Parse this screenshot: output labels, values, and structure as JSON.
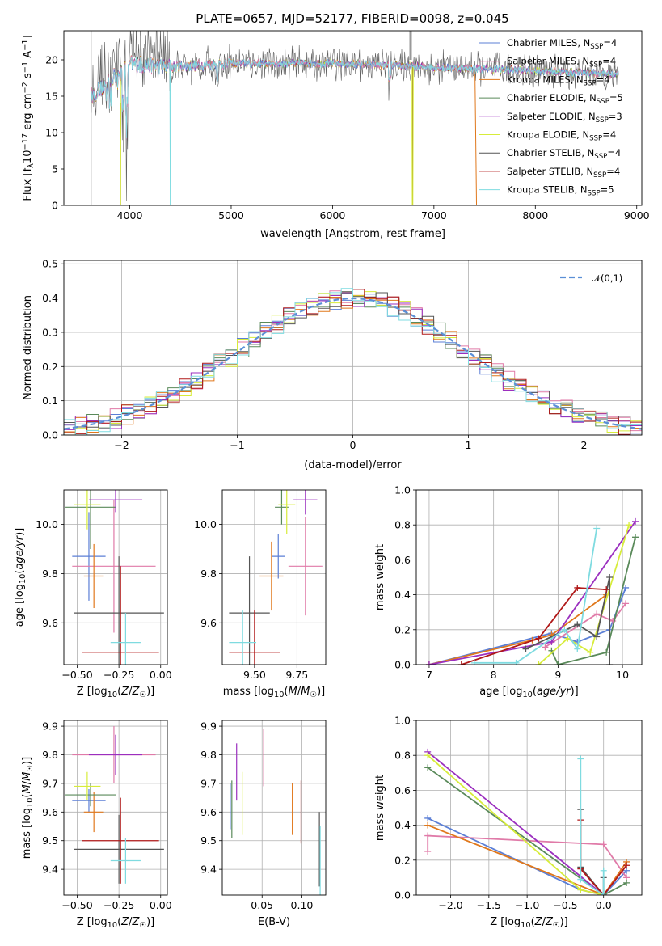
{
  "figure_title": "PLATE=0657, MJD=52177, FIBERID=0098, z=0.045",
  "palette": {
    "Chabrier MILES": "#5b7fd6",
    "Salpeter MILES": "#e07aa8",
    "Kroupa MILES": "#e0781c",
    "Chabrier ELODIE": "#5a8a5a",
    "Salpeter ELODIE": "#9b2fbf",
    "Kroupa ELODIE": "#d7ec3a",
    "Chabrier STELIB": "#555555",
    "Salpeter STELIB": "#b01818",
    "Kroupa STELIB": "#7fdbe0"
  },
  "chart_data": [
    {
      "id": "spectrum",
      "type": "line",
      "xlabel": "wavelength [Angstrom, rest frame]",
      "ylabel": "Flux [f_λ 10^-17 erg cm^-2 s^-1 A^-1]",
      "xlim": [
        3350,
        9050
      ],
      "ylim": [
        0,
        24
      ],
      "xticks": [
        4000,
        5000,
        6000,
        7000,
        8000,
        9000
      ],
      "yticks": [
        0,
        5,
        10,
        15,
        20
      ],
      "legend_position": "right",
      "legend": [
        {
          "name": "Chabrier MILES",
          "nssp": "4"
        },
        {
          "name": "Salpeter MILES",
          "nssp": "4"
        },
        {
          "name": "Kroupa MILES",
          "nssp": "4"
        },
        {
          "name": "Chabrier ELODIE",
          "nssp": "5"
        },
        {
          "name": "Salpeter ELODIE",
          "nssp": "3"
        },
        {
          "name": "Kroupa ELODIE",
          "nssp": "4"
        },
        {
          "name": "Chabrier STELIB",
          "nssp": "4"
        },
        {
          "name": "Salpeter STELIB",
          "nssp": "4"
        },
        {
          "name": "Kroupa STELIB",
          "nssp": "5"
        }
      ],
      "continuum_points": [
        [
          3620,
          15
        ],
        [
          3800,
          17
        ],
        [
          4000,
          19.5
        ],
        [
          4400,
          19
        ],
        [
          5000,
          19.5
        ],
        [
          6000,
          19.5
        ],
        [
          7000,
          19
        ],
        [
          8000,
          18.5
        ],
        [
          8800,
          18
        ]
      ],
      "wavelength_range": [
        3620,
        8820
      ],
      "cutoffs": [
        {
          "series": "Kroupa ELODIE",
          "wavelength": 3910
        },
        {
          "series": "Kroupa STELIB",
          "wavelength": 4400
        },
        {
          "series": "Kroupa ELODIE",
          "wavelength": 6790
        },
        {
          "series": "Kroupa MILES",
          "wavelength": 7410
        }
      ]
    },
    {
      "id": "residuals",
      "type": "histogram",
      "xlabel": "(data-model)/error",
      "ylabel": "Normed distribution",
      "xlim": [
        -2.5,
        2.5
      ],
      "ylim": [
        0,
        0.51
      ],
      "xticks": [
        -2,
        -1,
        0,
        1,
        2
      ],
      "yticks": [
        0.0,
        0.1,
        0.2,
        0.3,
        0.4,
        0.5
      ],
      "legend": "𝒩(0,1)",
      "legend_position": "top-right",
      "bin_width": 0.1,
      "reference_curve": {
        "name": "𝒩(0,1)",
        "mean": 0,
        "sd": 1,
        "color": "#5b8fd6"
      }
    },
    {
      "id": "age-vs-Z",
      "type": "errorbar",
      "xlabel": "Z [log10(Z/Z☉)]",
      "ylabel": "age [log10(age/yr)]",
      "xlim": [
        -0.58,
        0.04
      ],
      "ylim": [
        9.43,
        10.14
      ],
      "xticks": [
        -0.5,
        -0.25,
        0.0
      ],
      "yticks": [
        9.6,
        9.8,
        10.0
      ],
      "points": [
        {
          "series": "Chabrier MILES",
          "x": -0.43,
          "xerr": 0.1,
          "y": 9.87,
          "yerr": 0.18
        },
        {
          "series": "Salpeter MILES",
          "x": -0.28,
          "xerr": 0.25,
          "y": 9.83,
          "yerr": 0.27
        },
        {
          "series": "Kroupa MILES",
          "x": -0.4,
          "xerr": 0.06,
          "y": 9.79,
          "yerr": 0.13
        },
        {
          "series": "Chabrier ELODIE",
          "x": -0.42,
          "xerr": 0.15,
          "y": 10.07,
          "yerr": 0.17
        },
        {
          "series": "Salpeter ELODIE",
          "x": -0.27,
          "xerr": 0.16,
          "y": 10.1,
          "yerr": 0.05
        },
        {
          "series": "Kroupa ELODIE",
          "x": -0.44,
          "xerr": 0.08,
          "y": 10.08,
          "yerr": 0.1
        },
        {
          "series": "Chabrier STELIB",
          "x": -0.25,
          "xerr": 0.27,
          "y": 9.64,
          "yerr": 0.23
        },
        {
          "series": "Salpeter STELIB",
          "x": -0.24,
          "xerr": 0.23,
          "y": 9.48,
          "yerr": 0.35
        },
        {
          "series": "Kroupa STELIB",
          "x": -0.21,
          "xerr": 0.09,
          "y": 9.52,
          "yerr": 0.12
        }
      ]
    },
    {
      "id": "age-vs-mass",
      "type": "errorbar",
      "xlabel": "mass [log10(M/M☉)]",
      "ylabel": "",
      "xlim": [
        9.31,
        9.92
      ],
      "ylim": [
        9.43,
        10.14
      ],
      "xticks": [
        9.5,
        9.75
      ],
      "yticks": [
        9.6,
        9.8,
        10.0
      ],
      "points": [
        {
          "series": "Chabrier MILES",
          "x": 9.64,
          "xerr": 0.04,
          "y": 9.87,
          "yerr": 0.09
        },
        {
          "series": "Salpeter MILES",
          "x": 9.8,
          "xerr": 0.1,
          "y": 9.83,
          "yerr": 0.2
        },
        {
          "series": "Kroupa MILES",
          "x": 9.6,
          "xerr": 0.07,
          "y": 9.79,
          "yerr": 0.14
        },
        {
          "series": "Chabrier ELODIE",
          "x": 9.66,
          "xerr": 0.04,
          "y": 10.07,
          "yerr": 0.07
        },
        {
          "series": "Salpeter ELODIE",
          "x": 9.8,
          "xerr": 0.07,
          "y": 10.1,
          "yerr": 0.06
        },
        {
          "series": "Kroupa ELODIE",
          "x": 9.69,
          "xerr": 0.05,
          "y": 10.08,
          "yerr": 0.12
        },
        {
          "series": "Chabrier STELIB",
          "x": 9.47,
          "xerr": 0.12,
          "y": 9.64,
          "yerr": 0.23
        },
        {
          "series": "Salpeter STELIB",
          "x": 9.5,
          "xerr": 0.15,
          "y": 9.48,
          "yerr": 0.17
        },
        {
          "series": "Kroupa STELIB",
          "x": 9.43,
          "xerr": 0.08,
          "y": 9.52,
          "yerr": 0.13
        }
      ]
    },
    {
      "id": "mass-weight-vs-age",
      "type": "line",
      "xlabel": "age [log10(age/yr)]",
      "ylabel": "mass weight",
      "xlim": [
        6.8,
        10.3
      ],
      "ylim": [
        0,
        1.0
      ],
      "xticks": [
        7,
        8,
        9,
        10
      ],
      "yticks": [
        0.0,
        0.2,
        0.4,
        0.6,
        0.8,
        1.0
      ],
      "series": [
        {
          "name": "Chabrier MILES",
          "points": [
            [
              7.0,
              0.0
            ],
            [
              8.9,
              0.18
            ],
            [
              9.3,
              0.13
            ],
            [
              9.8,
              0.2
            ],
            [
              10.05,
              0.44
            ]
          ]
        },
        {
          "name": "Salpeter MILES",
          "points": [
            [
              8.8,
              0.1
            ],
            [
              9.6,
              0.29
            ],
            [
              9.85,
              0.25
            ],
            [
              10.05,
              0.35
            ]
          ]
        },
        {
          "name": "Kroupa MILES",
          "points": [
            [
              7.0,
              0.0
            ],
            [
              8.6,
              0.14
            ],
            [
              8.9,
              0.17
            ],
            [
              9.75,
              0.4
            ]
          ]
        },
        {
          "name": "Chabrier ELODIE",
          "points": [
            [
              8.9,
              0.08
            ],
            [
              9.0,
              0.0
            ],
            [
              9.75,
              0.07
            ],
            [
              10.2,
              0.73
            ]
          ]
        },
        {
          "name": "Salpeter ELODIE",
          "points": [
            [
              7.0,
              0.0
            ],
            [
              8.9,
              0.13
            ],
            [
              10.2,
              0.82
            ]
          ]
        },
        {
          "name": "Kroupa ELODIE",
          "points": [
            [
              8.7,
              0.0
            ],
            [
              9.15,
              0.15
            ],
            [
              9.5,
              0.07
            ],
            [
              10.1,
              0.8
            ]
          ]
        },
        {
          "name": "Chabrier STELIB",
          "points": [
            [
              8.5,
              0.09
            ],
            [
              9.3,
              0.23
            ],
            [
              9.6,
              0.16
            ],
            [
              9.8,
              0.5
            ],
            [
              9.8,
              0.0
            ]
          ]
        },
        {
          "name": "Salpeter STELIB",
          "points": [
            [
              7.5,
              0.0
            ],
            [
              8.7,
              0.15
            ],
            [
              9.3,
              0.44
            ],
            [
              9.75,
              0.43
            ]
          ]
        },
        {
          "name": "Kroupa STELIB",
          "points": [
            [
              7.7,
              0.01
            ],
            [
              8.35,
              0.01
            ],
            [
              9.1,
              0.2
            ],
            [
              9.3,
              0.09
            ],
            [
              9.6,
              0.78
            ]
          ]
        }
      ]
    },
    {
      "id": "mass-vs-Z",
      "type": "errorbar",
      "xlabel": "Z [log10(Z/Z☉)]",
      "ylabel": "mass [log10(M/M☉)]",
      "xlim": [
        -0.58,
        0.04
      ],
      "ylim": [
        9.31,
        9.92
      ],
      "xticks": [
        -0.5,
        -0.25,
        0.0
      ],
      "yticks": [
        9.4,
        9.5,
        9.6,
        9.7,
        9.8,
        9.9
      ],
      "points": [
        {
          "series": "Chabrier MILES",
          "x": -0.43,
          "xerr": 0.1,
          "y": 9.64,
          "yerr": 0.04
        },
        {
          "series": "Salpeter MILES",
          "x": -0.28,
          "xerr": 0.25,
          "y": 9.8,
          "yerr": 0.1
        },
        {
          "series": "Kroupa MILES",
          "x": -0.4,
          "xerr": 0.06,
          "y": 9.6,
          "yerr": 0.07
        },
        {
          "series": "Chabrier ELODIE",
          "x": -0.42,
          "xerr": 0.15,
          "y": 9.66,
          "yerr": 0.04
        },
        {
          "series": "Salpeter ELODIE",
          "x": -0.27,
          "xerr": 0.16,
          "y": 9.8,
          "yerr": 0.07
        },
        {
          "series": "Kroupa ELODIE",
          "x": -0.44,
          "xerr": 0.08,
          "y": 9.69,
          "yerr": 0.05
        },
        {
          "series": "Chabrier STELIB",
          "x": -0.25,
          "xerr": 0.27,
          "y": 9.47,
          "yerr": 0.12
        },
        {
          "series": "Salpeter STELIB",
          "x": -0.24,
          "xerr": 0.23,
          "y": 9.5,
          "yerr": 0.15
        },
        {
          "series": "Kroupa STELIB",
          "x": -0.21,
          "xerr": 0.09,
          "y": 9.43,
          "yerr": 0.08
        }
      ]
    },
    {
      "id": "mass-vs-EBV",
      "type": "errorbar",
      "xlabel": "E(B-V)",
      "ylabel": "",
      "xlim": [
        0.0,
        0.13
      ],
      "ylim": [
        9.31,
        9.92
      ],
      "xticks": [
        0.05,
        0.1
      ],
      "yticks": [
        9.4,
        9.5,
        9.6,
        9.7,
        9.8,
        9.9
      ],
      "points": [
        {
          "series": "Chabrier MILES",
          "x": 0.01,
          "y": 9.62,
          "yerr": 0.08
        },
        {
          "series": "Salpeter MILES",
          "x": 0.052,
          "y": 9.79,
          "yerr": 0.1
        },
        {
          "series": "Kroupa MILES",
          "x": 0.088,
          "y": 9.61,
          "yerr": 0.09
        },
        {
          "series": "Chabrier ELODIE",
          "x": 0.012,
          "y": 9.61,
          "yerr": 0.1
        },
        {
          "series": "Salpeter ELODIE",
          "x": 0.018,
          "y": 9.74,
          "yerr": 0.1
        },
        {
          "series": "Kroupa ELODIE",
          "x": 0.025,
          "y": 9.63,
          "yerr": 0.11
        },
        {
          "series": "Chabrier STELIB",
          "x": 0.122,
          "y": 9.47,
          "yerr": 0.13
        },
        {
          "series": "Salpeter STELIB",
          "x": 0.099,
          "y": 9.6,
          "yerr": 0.11
        },
        {
          "series": "Kroupa STELIB",
          "x": 0.123,
          "y": 9.43,
          "yerr": 0.12
        }
      ]
    },
    {
      "id": "mass-weight-vs-Z",
      "type": "line",
      "xlabel": "Z [log10(Z/Z☉)]",
      "ylabel": "mass weight",
      "xlim": [
        -2.45,
        0.5
      ],
      "ylim": [
        0,
        1.0
      ],
      "xticks": [
        -2.0,
        -1.5,
        -1.0,
        -0.5,
        0.0
      ],
      "yticks": [
        0.0,
        0.2,
        0.4,
        0.6,
        0.8,
        1.0
      ],
      "series": [
        {
          "name": "Chabrier MILES",
          "points": [
            [
              -2.3,
              0.44
            ],
            [
              -0.3,
              0.03
            ],
            [
              0.0,
              0.0
            ],
            [
              0.3,
              0.14
            ]
          ]
        },
        {
          "name": "Salpeter MILES",
          "points": [
            [
              -2.3,
              0.25
            ],
            [
              -2.3,
              0.34
            ],
            [
              0.0,
              0.29
            ],
            [
              0.3,
              0.1
            ]
          ]
        },
        {
          "name": "Kroupa MILES",
          "points": [
            [
              -2.3,
              0.4
            ],
            [
              0.0,
              0.0
            ],
            [
              0.3,
              0.19
            ]
          ]
        },
        {
          "name": "Chabrier ELODIE",
          "points": [
            [
              -2.3,
              0.73
            ],
            [
              0.0,
              0.0
            ],
            [
              0.3,
              0.07
            ]
          ]
        },
        {
          "name": "Salpeter ELODIE",
          "points": [
            [
              -2.3,
              0.82
            ],
            [
              0.0,
              0.0
            ]
          ]
        },
        {
          "name": "Kroupa ELODIE",
          "points": [
            [
              -2.3,
              0.8
            ],
            [
              -0.3,
              0.03
            ],
            [
              0.0,
              0.0
            ]
          ]
        },
        {
          "name": "Chabrier STELIB",
          "points": [
            [
              -0.3,
              0.49
            ],
            [
              -0.3,
              0.16
            ],
            [
              0.0,
              0.0
            ],
            [
              0.0,
              0.1
            ]
          ]
        },
        {
          "name": "Salpeter STELIB",
          "points": [
            [
              -0.3,
              0.43
            ],
            [
              -0.3,
              0.15
            ],
            [
              0.0,
              0.0
            ],
            [
              0.3,
              0.17
            ]
          ]
        },
        {
          "name": "Kroupa STELIB",
          "points": [
            [
              -0.3,
              0.78
            ],
            [
              -0.3,
              0.09
            ],
            [
              0.0,
              0.0
            ],
            [
              0.0,
              0.14
            ]
          ]
        }
      ]
    }
  ]
}
